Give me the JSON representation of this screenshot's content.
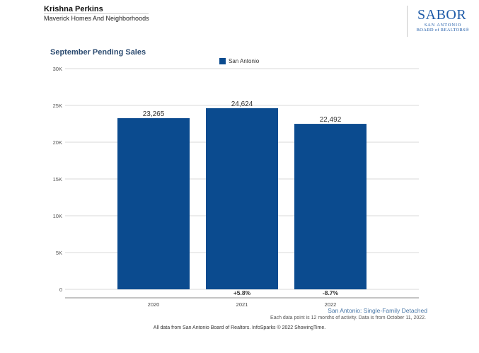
{
  "header": {
    "agent_name": "Krishna Perkins",
    "company": "Maverick Homes And Neighborhoods"
  },
  "logo": {
    "main": "SABOR",
    "line1": "SAN ANTONIO",
    "line2": "BOARD of REALTORS®"
  },
  "colors": {
    "bar": "#0b4b8f",
    "grid": "#d9d9d9",
    "title": "#2b4a6f"
  },
  "chart_data": {
    "type": "bar",
    "title": "September Pending Sales",
    "categories": [
      "2020",
      "2021",
      "2022"
    ],
    "series": [
      {
        "name": "San Antonio",
        "values": [
          23265,
          24624,
          22492
        ]
      }
    ],
    "value_labels": [
      "23,265",
      "24,624",
      "22,492"
    ],
    "change_labels": [
      "",
      "+5.8%",
      "-8.7%"
    ],
    "y_ticks": [
      0,
      5000,
      10000,
      15000,
      20000,
      25000,
      30000
    ],
    "y_tick_labels": [
      "0",
      "5K",
      "10K",
      "15K",
      "20K",
      "25K",
      "30K"
    ],
    "ylim": [
      0,
      30000
    ],
    "xlabel": "",
    "ylabel": "",
    "legend_position": "top-center"
  },
  "footer": {
    "series_note": "San Antonio: Single-Family Detached",
    "period_note": "Each data point is 12 months of activity. Data is from October 11, 2022.",
    "source": "All data from San Antonio Board of Realtors. InfoSparks © 2022 ShowingTime."
  }
}
